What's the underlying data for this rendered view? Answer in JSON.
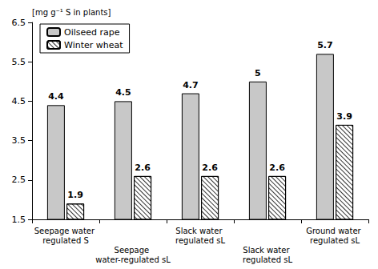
{
  "chart_data": {
    "type": "bar",
    "y_label": "[mg g⁻¹ S in plants]",
    "categories": [
      "Seepage water regulated S",
      "Seepage water-regulated sL",
      "Slack water regulated sL",
      "Slack water regulated sL",
      "Ground water regulated sL"
    ],
    "series": [
      {
        "name": "Oilseed rape",
        "color": "#c8c8c8",
        "values": [
          4.4,
          4.5,
          4.7,
          5.0,
          5.7
        ]
      },
      {
        "name": "Winter wheat",
        "color": "#ffffff",
        "values": [
          1.9,
          2.6,
          2.6,
          2.6,
          3.9
        ]
      }
    ],
    "ylim": [
      1.5,
      6.5
    ],
    "yticks": [
      1.5,
      2.5,
      3.5,
      4.5,
      5.5,
      6.5
    ],
    "grid": false,
    "legend": "top-left",
    "data_labels": true
  }
}
